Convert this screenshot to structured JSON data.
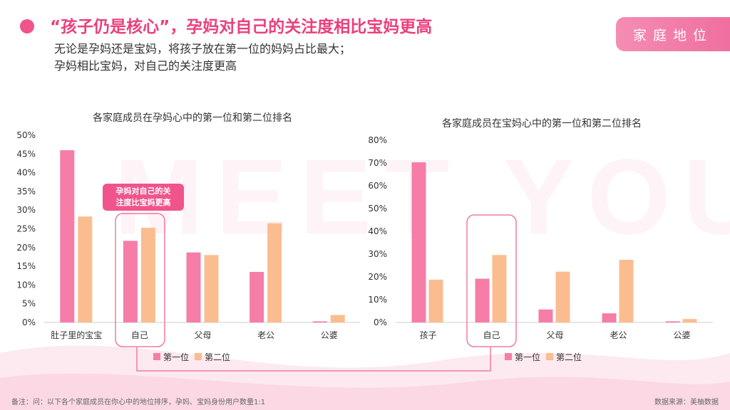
{
  "header": {
    "title": "“孩子仍是核心”，孕妈对自己的关注度相比宝妈更高",
    "subtitle_line1": "无论是孕妈还是宝妈，将孩子放在第一位的妈妈占比最大；",
    "subtitle_line2": "孕妈相比宝妈，对自己的关注度更高",
    "tag": "家庭地位"
  },
  "watermark": "MEET YOU",
  "callout": {
    "line1": "孕妈对自己的关",
    "line2": "注度比宝妈更高"
  },
  "colors": {
    "first": "#f57da8",
    "second": "#fbbd8f",
    "accent": "#ec3f7c"
  },
  "chart_data": [
    {
      "type": "bar",
      "title": "各家庭成员在孕妈心中的第一位和第二位排名",
      "categories": [
        "肚子里的宝宝",
        "自己",
        "父母",
        "老公",
        "公婆"
      ],
      "series": [
        {
          "name": "第一位",
          "values": [
            46,
            21.8,
            18.7,
            13.5,
            0.3
          ]
        },
        {
          "name": "第二位",
          "values": [
            28.3,
            25.3,
            18,
            26.5,
            2
          ]
        }
      ],
      "ylim": [
        0,
        50
      ],
      "yticks": [
        "0%",
        "5%",
        "10%",
        "15%",
        "20%",
        "25%",
        "30%",
        "35%",
        "40%",
        "45%",
        "50%"
      ],
      "legend": "bottom"
    },
    {
      "type": "bar",
      "title": "各家庭成员在宝妈心中的第一位和第二位排名",
      "categories": [
        "孩子",
        "自己",
        "父母",
        "老公",
        "公婆"
      ],
      "series": [
        {
          "name": "第一位",
          "values": [
            70.3,
            19.2,
            5.7,
            4,
            0.5
          ]
        },
        {
          "name": "第二位",
          "values": [
            18.8,
            29.6,
            22.3,
            27.5,
            1.5
          ]
        }
      ],
      "ylim": [
        0,
        80
      ],
      "yticks": [
        "0%",
        "10%",
        "20%",
        "30%",
        "40%",
        "50%",
        "60%",
        "70%",
        "80%"
      ],
      "legend": "bottom"
    }
  ],
  "footer": {
    "note": "备注：问：以下各个家庭成员在你心中的地位排序，孕妈、宝妈身份用户数量1:1",
    "source": "数据来源：美柚数据"
  }
}
